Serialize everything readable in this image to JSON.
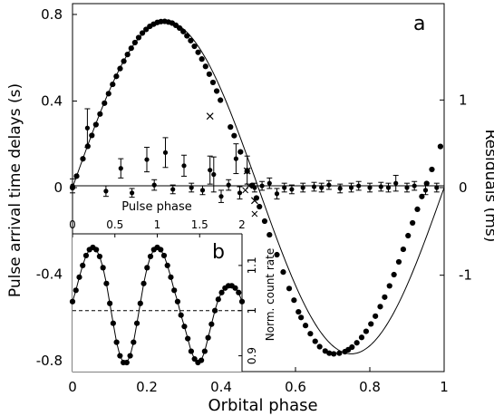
{
  "chart_data": [
    {
      "id": "main",
      "type": "scatter",
      "panel_label": "a",
      "xlabel": "Orbital phase",
      "ylabel": "Pulse arrival time delays (s)",
      "y2label": "Residuals (ms)",
      "xlim": [
        0,
        1
      ],
      "ylim": [
        -0.85,
        0.85
      ],
      "y2lim": [
        -2.1,
        2.1
      ],
      "x_ticks": [
        0,
        0.2,
        0.4,
        0.6,
        0.8,
        1
      ],
      "x_tick_labels": [
        "0",
        "0.2",
        "0.4",
        "0.6",
        "0.8",
        "1"
      ],
      "y_ticks": [
        0.8,
        0.4,
        0,
        -0.4,
        -0.8
      ],
      "y_tick_labels": [
        "0.8",
        "0.4",
        "0",
        "-0.4",
        "-0.8"
      ],
      "y2_ticks": [
        1,
        0,
        -1
      ],
      "y2_tick_labels": [
        "1",
        "0",
        "-1"
      ],
      "model": {
        "amplitude": 0.768,
        "phase_offset": 0.0
      },
      "delay_points": {
        "x": [
          0.0,
          0.011,
          0.028,
          0.041,
          0.052,
          0.063,
          0.074,
          0.086,
          0.097,
          0.108,
          0.118,
          0.128,
          0.138,
          0.148,
          0.158,
          0.168,
          0.178,
          0.188,
          0.198,
          0.208,
          0.218,
          0.228,
          0.238,
          0.248,
          0.258,
          0.268,
          0.278,
          0.288,
          0.298,
          0.308,
          0.318,
          0.328,
          0.338,
          0.348,
          0.358,
          0.368,
          0.378,
          0.388,
          0.398,
          0.425,
          0.435,
          0.452,
          0.47,
          0.483,
          0.495,
          0.503,
          0.517,
          0.53,
          0.55,
          0.567,
          0.583,
          0.596,
          0.608,
          0.615,
          0.627,
          0.64,
          0.653,
          0.665,
          0.68,
          0.691,
          0.703,
          0.718,
          0.733,
          0.742,
          0.752,
          0.765,
          0.778,
          0.79,
          0.803,
          0.815,
          0.828,
          0.84,
          0.853,
          0.865,
          0.878,
          0.89,
          0.903,
          0.915,
          0.928,
          0.94,
          0.953,
          0.967,
          0.99
        ],
        "y": [
          0.0,
          0.053,
          0.133,
          0.191,
          0.241,
          0.291,
          0.34,
          0.39,
          0.434,
          0.477,
          0.514,
          0.55,
          0.584,
          0.615,
          0.644,
          0.67,
          0.693,
          0.714,
          0.731,
          0.745,
          0.755,
          0.763,
          0.767,
          0.768,
          0.765,
          0.76,
          0.75,
          0.737,
          0.721,
          0.701,
          0.679,
          0.653,
          0.625,
          0.594,
          0.56,
          0.524,
          0.486,
          0.446,
          0.404,
          0.28,
          0.24,
          0.165,
          0.076,
          0.01,
          -0.048,
          -0.088,
          -0.155,
          -0.218,
          -0.31,
          -0.39,
          -0.466,
          -0.52,
          -0.574,
          -0.6,
          -0.637,
          -0.675,
          -0.71,
          -0.735,
          -0.755,
          -0.765,
          -0.768,
          -0.765,
          -0.758,
          -0.749,
          -0.737,
          -0.717,
          -0.692,
          -0.664,
          -0.63,
          -0.594,
          -0.55,
          -0.506,
          -0.454,
          -0.402,
          -0.343,
          -0.285,
          -0.222,
          -0.163,
          -0.1,
          -0.041,
          0.019,
          0.084,
          0.19
        ]
      },
      "delay_crosses": {
        "x": [
          0.37,
          0.47,
          0.49
        ],
        "y": [
          0.33,
          0.077,
          -0.06
        ]
      },
      "residual_points": {
        "x": [
          0.0,
          0.04,
          0.09,
          0.13,
          0.16,
          0.2,
          0.22,
          0.25,
          0.27,
          0.3,
          0.32,
          0.35,
          0.37,
          0.38,
          0.4,
          0.42,
          0.44,
          0.45,
          0.47,
          0.49,
          0.51,
          0.53,
          0.55,
          0.57,
          0.59,
          0.62,
          0.65,
          0.67,
          0.69,
          0.72,
          0.75,
          0.77,
          0.8,
          0.83,
          0.85,
          0.87,
          0.9,
          0.92,
          0.95,
          0.98
        ],
        "y": [
          0.02,
          0.68,
          -0.04,
          0.22,
          -0.06,
          0.32,
          0.03,
          0.4,
          -0.02,
          0.25,
          0.0,
          -0.03,
          0.2,
          0.15,
          -0.1,
          0.03,
          0.33,
          -0.06,
          0.2,
          0.0,
          0.02,
          0.05,
          -0.07,
          0.0,
          -0.02,
          0.0,
          0.01,
          0.0,
          0.03,
          -0.01,
          0.0,
          0.02,
          0.0,
          0.01,
          0.0,
          0.05,
          0.0,
          0.02,
          -0.03,
          0.0
        ],
        "err": [
          0.08,
          0.22,
          0.06,
          0.11,
          0.05,
          0.14,
          0.06,
          0.17,
          0.05,
          0.12,
          0.05,
          0.05,
          0.16,
          0.2,
          0.07,
          0.06,
          0.17,
          0.07,
          0.16,
          0.05,
          0.05,
          0.06,
          0.06,
          0.05,
          0.05,
          0.05,
          0.05,
          0.05,
          0.05,
          0.05,
          0.05,
          0.05,
          0.05,
          0.05,
          0.05,
          0.09,
          0.05,
          0.05,
          0.05,
          0.05
        ]
      },
      "residual_crosses": {
        "x": [
          0.465,
          0.475,
          0.49
        ],
        "y": [
          -0.03,
          0.02,
          -0.3
        ]
      }
    },
    {
      "id": "inset",
      "type": "scatter",
      "panel_label": "b",
      "xlabel": "Pulse phase",
      "ylabel": "Norm. count rate",
      "xlim": [
        0,
        2
      ],
      "ylim": [
        0.865,
        1.17
      ],
      "x_ticks": [
        0,
        0.5,
        1,
        1.5,
        2
      ],
      "x_tick_labels": [
        "0",
        "0.5",
        "1",
        "1.5",
        "2"
      ],
      "y_ticks": [
        0.9,
        1,
        1.1
      ],
      "y_tick_labels": [
        "0.9",
        "1",
        "1.1"
      ],
      "reference_line_y": 1.0,
      "points": {
        "x": [
          0.0,
          0.04,
          0.08,
          0.12,
          0.16,
          0.2,
          0.24,
          0.28,
          0.32,
          0.36,
          0.4,
          0.44,
          0.48,
          0.52,
          0.56,
          0.6,
          0.64,
          0.68,
          0.72,
          0.76,
          0.8,
          0.84,
          0.88,
          0.92,
          0.96,
          1.0,
          1.04,
          1.08,
          1.12,
          1.16,
          1.2,
          1.24,
          1.28,
          1.32,
          1.36,
          1.4,
          1.44,
          1.48,
          1.52,
          1.56,
          1.6,
          1.64,
          1.68,
          1.72,
          1.76,
          1.8,
          1.84,
          1.88,
          1.92,
          1.96,
          2.0
        ],
        "y": [
          1.02,
          1.045,
          1.074,
          1.1,
          1.122,
          1.135,
          1.14,
          1.135,
          1.12,
          1.095,
          1.06,
          1.016,
          0.972,
          0.93,
          0.9,
          0.885,
          0.885,
          0.9,
          0.93,
          0.972,
          1.016,
          1.06,
          1.095,
          1.12,
          1.135,
          1.14,
          1.135,
          1.122,
          1.1,
          1.074,
          1.045,
          1.02,
          0.99,
          0.965,
          0.938,
          0.91,
          0.893,
          0.885,
          0.89,
          0.91,
          0.94,
          0.97,
          1.0,
          1.025,
          1.04,
          1.05,
          1.055,
          1.055,
          1.05,
          1.04,
          1.02
        ]
      }
    }
  ]
}
